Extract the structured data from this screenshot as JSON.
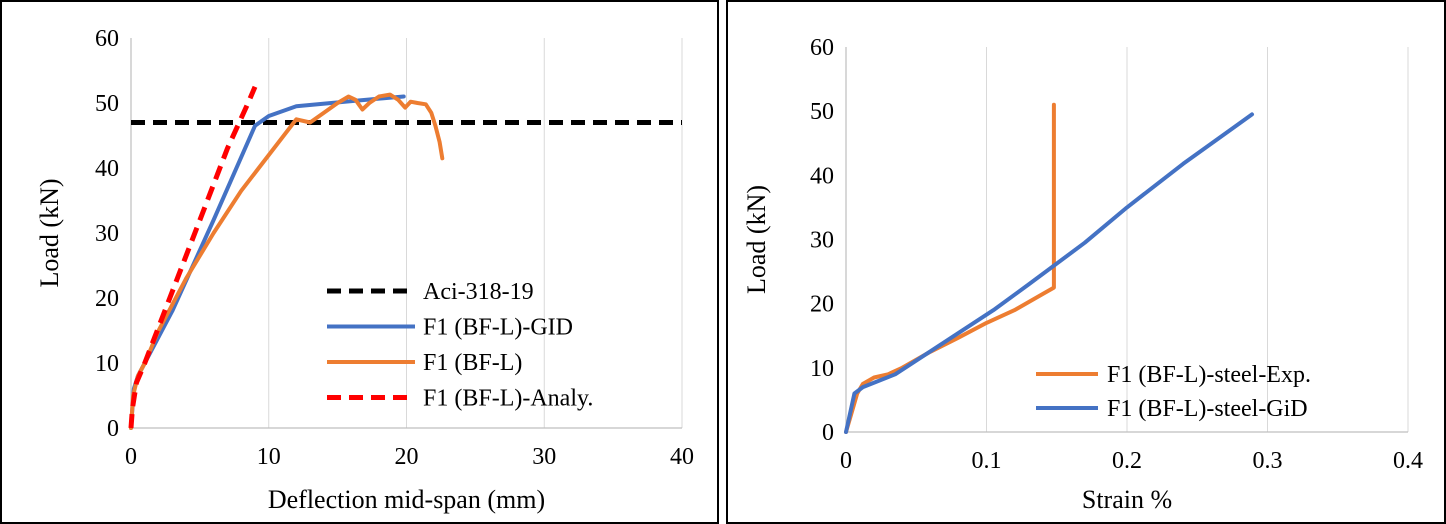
{
  "chart_data": [
    {
      "type": "line",
      "xlabel": "Deflection mid-span (mm)",
      "ylabel": "Load (kN)",
      "xlim": [
        0,
        40
      ],
      "ylim": [
        0,
        60
      ],
      "xticks": [
        0,
        10,
        20,
        30,
        40
      ],
      "yticks": [
        0,
        10,
        20,
        30,
        40,
        50,
        60
      ],
      "grid": "vertical",
      "legend_position": "bottom-right",
      "series": [
        {
          "name": "Aci-318-19",
          "color": "#000000",
          "dash": "dashed",
          "x": [
            0,
            40
          ],
          "y": [
            47,
            47
          ]
        },
        {
          "name": "F1 (BF-L)-GID",
          "color": "#4472C4",
          "dash": "solid",
          "x": [
            0,
            0.2,
            0.5,
            1,
            3,
            6,
            9,
            10,
            12,
            16,
            19.8
          ],
          "y": [
            0,
            6,
            8,
            10,
            18,
            32,
            46.5,
            48,
            49.5,
            50.3,
            51
          ]
        },
        {
          "name": "F1 (BF-L)",
          "color": "#ED7D31",
          "dash": "solid",
          "x": [
            0,
            0.15,
            0.5,
            1,
            2,
            4,
            6,
            8,
            10,
            12,
            13,
            14,
            15,
            15.8,
            16.3,
            16.8,
            17.3,
            18,
            18.8,
            19.4,
            19.9,
            20.3,
            20.8,
            21.4,
            21.8,
            22.1,
            22.4,
            22.6
          ],
          "y": [
            0,
            5,
            8,
            10,
            15,
            23,
            30,
            36.5,
            42,
            47.5,
            47,
            48.5,
            50,
            51,
            50.5,
            49,
            50,
            51,
            51.3,
            50.5,
            49.3,
            50.2,
            50,
            49.8,
            48.5,
            46.5,
            44,
            41.5
          ]
        },
        {
          "name": "F1 (BF-L)-Analy.",
          "color": "#FF0000",
          "dash": "dashed",
          "x": [
            0,
            0.1,
            0.4,
            1,
            3,
            5,
            7,
            8.5,
            9
          ],
          "y": [
            0,
            3,
            7,
            10,
            21,
            32,
            43,
            50,
            52.5
          ]
        }
      ]
    },
    {
      "type": "line",
      "xlabel": "Strain %",
      "ylabel": "Load (kN)",
      "xlim": [
        0,
        0.4
      ],
      "ylim": [
        0,
        60
      ],
      "xticks": [
        "0",
        "0.1",
        "0.2",
        "0.3",
        "0.4"
      ],
      "yticks": [
        0,
        10,
        20,
        30,
        40,
        50,
        60
      ],
      "grid": "vertical",
      "legend_position": "bottom-right",
      "series": [
        {
          "name": "F1 (BF-L)-steel-Exp.",
          "color": "#ED7D31",
          "dash": "solid",
          "x": [
            0,
            0.004,
            0.008,
            0.012,
            0.02,
            0.03,
            0.04,
            0.06,
            0.08,
            0.1,
            0.12,
            0.14,
            0.148,
            0.148,
            0.148
          ],
          "y": [
            0,
            3,
            6,
            7.5,
            8.5,
            9,
            10,
            12.5,
            14.7,
            17,
            19,
            21.5,
            22.5,
            30,
            51
          ]
        },
        {
          "name": "F1 (BF-L)-steel-GiD",
          "color": "#4472C4",
          "dash": "solid",
          "x": [
            0,
            0.002,
            0.006,
            0.012,
            0.035,
            0.07,
            0.105,
            0.13,
            0.17,
            0.2,
            0.24,
            0.289
          ],
          "y": [
            0,
            2,
            6,
            7,
            9,
            14,
            19,
            23,
            29.5,
            35,
            41.8,
            49.5
          ]
        }
      ]
    }
  ]
}
